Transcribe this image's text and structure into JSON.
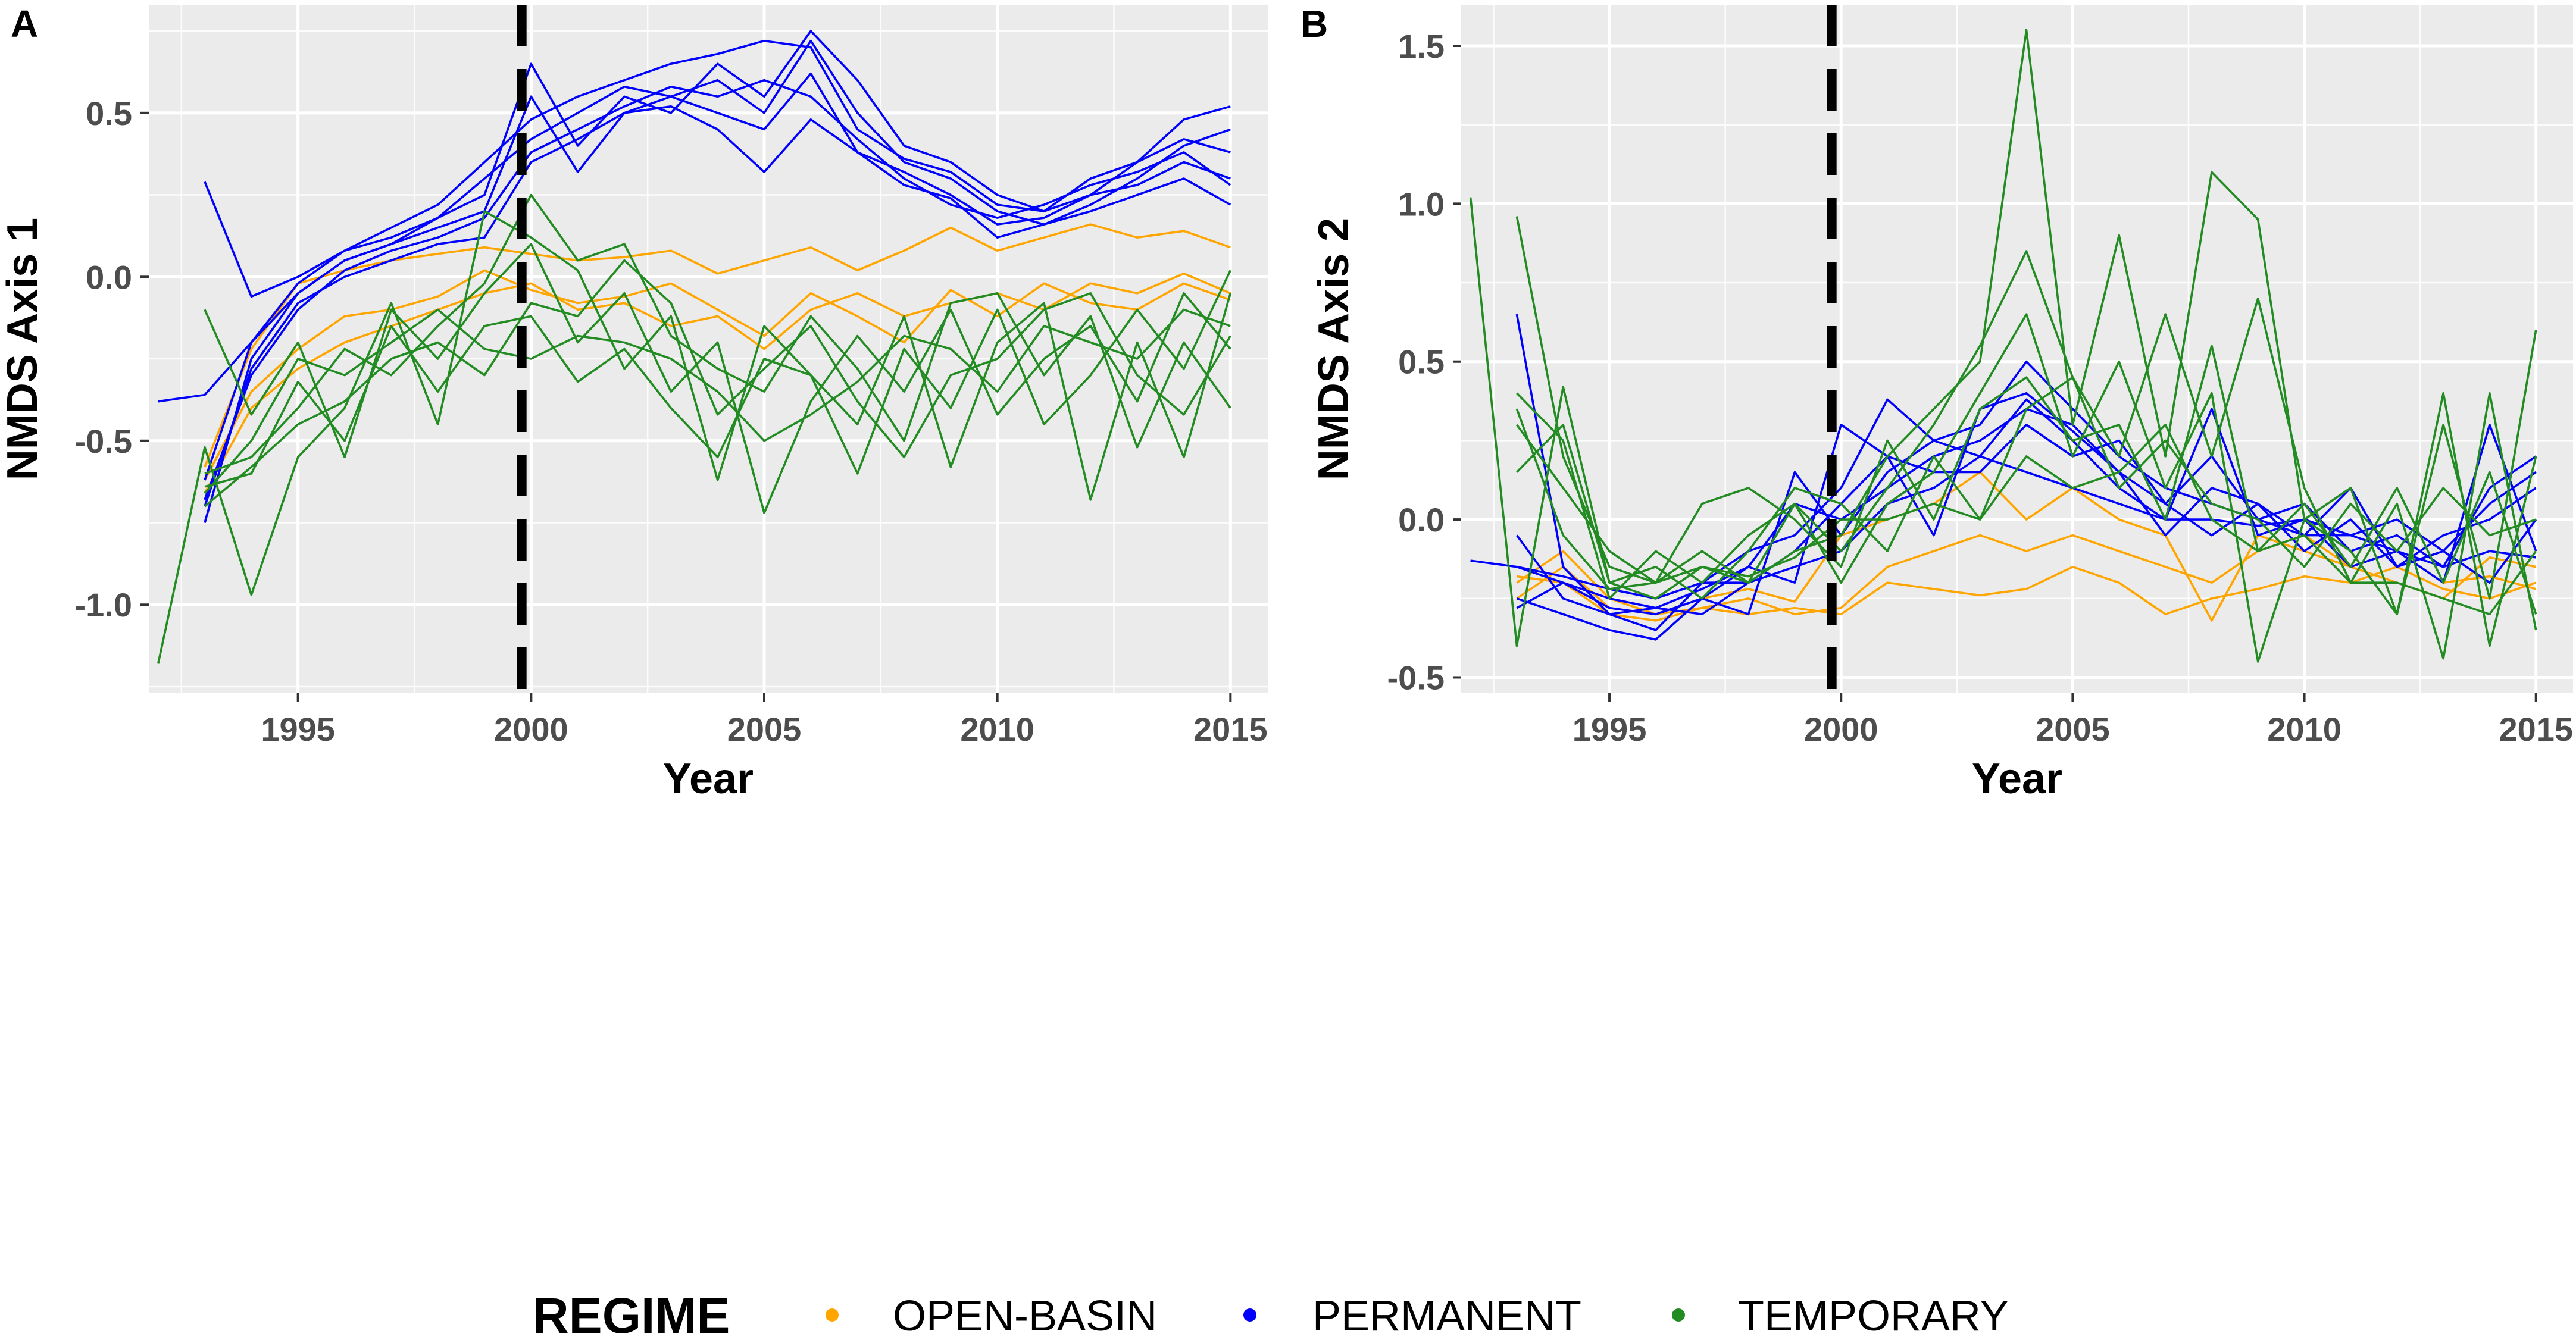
{
  "legend": {
    "title": "REGIME",
    "entries": [
      {
        "label": "OPEN-BASIN",
        "color": "#FFA500"
      },
      {
        "label": "PERMANENT",
        "color": "#0000FF"
      },
      {
        "label": "TEMPORARY",
        "color": "#228B22"
      }
    ]
  },
  "chart_data": [
    {
      "type": "line",
      "panel": "A",
      "xlabel": "Year",
      "ylabel": "NMDS Axis 1",
      "xlim": [
        1991.8,
        2015.8
      ],
      "ylim": [
        -1.27,
        0.83
      ],
      "xticks": [
        1995,
        2000,
        2005,
        2010,
        2015
      ],
      "xtick_labels": [
        "1995",
        "2000",
        "2005",
        "2010",
        "2015"
      ],
      "yticks": [
        -1.0,
        -0.5,
        0.0,
        0.5
      ],
      "ytick_labels": [
        "-1.0",
        "-0.5",
        "0.0",
        "0.5"
      ],
      "vline": 1999.8,
      "x": [
        1992,
        1993,
        1994,
        1995,
        1996,
        1997,
        1998,
        1999,
        2000,
        2001,
        2002,
        2003,
        2004,
        2005,
        2006,
        2007,
        2008,
        2009,
        2010,
        2011,
        2012,
        2013,
        2014,
        2015
      ],
      "series": [
        {
          "name": "OPEN-BASIN",
          "color": "#FFA500",
          "values": [
            null,
            -0.58,
            -0.22,
            -0.02,
            0.02,
            0.05,
            0.07,
            0.09,
            0.07,
            0.05,
            0.06,
            0.08,
            0.01,
            0.05,
            0.09,
            0.02,
            0.08,
            0.15,
            0.08,
            0.12,
            0.16,
            0.12,
            0.14,
            0.09
          ]
        },
        {
          "name": "OPEN-BASIN",
          "color": "#FFA500",
          "values": [
            null,
            -0.62,
            -0.35,
            -0.22,
            -0.12,
            -0.1,
            -0.06,
            0.02,
            -0.04,
            -0.08,
            -0.06,
            -0.02,
            -0.1,
            -0.18,
            -0.05,
            -0.12,
            -0.2,
            -0.04,
            -0.12,
            -0.02,
            -0.08,
            -0.1,
            -0.02,
            -0.07
          ]
        },
        {
          "name": "OPEN-BASIN",
          "color": "#FFA500",
          "values": [
            null,
            -0.66,
            -0.4,
            -0.28,
            -0.2,
            -0.15,
            -0.1,
            -0.05,
            -0.02,
            -0.1,
            -0.08,
            -0.15,
            -0.12,
            -0.22,
            -0.1,
            -0.05,
            -0.12,
            -0.08,
            -0.05,
            -0.1,
            -0.02,
            -0.05,
            0.01,
            -0.05
          ]
        },
        {
          "name": "PERMANENT",
          "color": "#0000FF",
          "values": [
            -0.38,
            -0.36,
            -0.2,
            -0.05,
            0.05,
            0.1,
            0.15,
            0.2,
            0.55,
            0.32,
            0.5,
            0.55,
            0.6,
            0.5,
            0.72,
            0.5,
            0.35,
            0.3,
            0.2,
            0.16,
            0.22,
            0.3,
            0.4,
            0.45
          ]
        },
        {
          "name": "PERMANENT",
          "color": "#0000FF",
          "values": [
            null,
            0.29,
            -0.06,
            0.0,
            0.08,
            0.12,
            0.18,
            0.25,
            0.65,
            0.4,
            0.55,
            0.5,
            0.65,
            0.55,
            0.75,
            0.6,
            0.4,
            0.35,
            0.25,
            0.2,
            0.25,
            0.35,
            0.48,
            0.52
          ]
        },
        {
          "name": "PERMANENT",
          "color": "#0000FF",
          "values": [
            null,
            -0.75,
            -0.25,
            -0.05,
            0.05,
            0.1,
            0.18,
            0.3,
            0.42,
            0.5,
            0.58,
            0.55,
            0.5,
            0.45,
            0.62,
            0.38,
            0.32,
            0.25,
            0.16,
            0.18,
            0.25,
            0.28,
            0.35,
            0.3
          ]
        },
        {
          "name": "PERMANENT",
          "color": "#0000FF",
          "values": [
            null,
            -0.68,
            -0.3,
            -0.1,
            0.02,
            0.08,
            0.12,
            0.18,
            0.38,
            0.45,
            0.52,
            0.58,
            0.55,
            0.6,
            0.55,
            0.42,
            0.3,
            0.22,
            0.18,
            0.22,
            0.28,
            0.32,
            0.38,
            0.28
          ]
        },
        {
          "name": "PERMANENT",
          "color": "#0000FF",
          "values": [
            null,
            -0.62,
            -0.2,
            -0.02,
            0.08,
            0.15,
            0.22,
            0.35,
            0.48,
            0.55,
            0.6,
            0.65,
            0.68,
            0.72,
            0.7,
            0.45,
            0.36,
            0.32,
            0.22,
            0.2,
            0.3,
            0.35,
            0.42,
            0.38
          ]
        },
        {
          "name": "PERMANENT",
          "color": "#0000FF",
          "values": [
            null,
            -0.7,
            -0.28,
            -0.08,
            0.0,
            0.05,
            0.1,
            0.12,
            0.35,
            0.42,
            0.5,
            0.52,
            0.45,
            0.32,
            0.48,
            0.38,
            0.28,
            0.24,
            0.12,
            0.16,
            0.2,
            0.25,
            0.3,
            0.22
          ]
        },
        {
          "name": "TEMPORARY",
          "color": "#228B22",
          "values": [
            -1.18,
            -0.52,
            -0.97,
            -0.55,
            -0.4,
            -0.08,
            -0.45,
            0.2,
            0.12,
            0.02,
            -0.28,
            -0.12,
            -0.62,
            -0.15,
            -0.3,
            -0.45,
            -0.12,
            -0.58,
            -0.2,
            -0.08,
            -0.68,
            -0.2,
            -0.55,
            -0.05
          ]
        },
        {
          "name": "TEMPORARY",
          "color": "#228B22",
          "values": [
            null,
            -0.1,
            -0.42,
            -0.2,
            -0.55,
            -0.1,
            -0.25,
            -0.05,
            0.1,
            -0.2,
            -0.05,
            -0.35,
            -0.2,
            -0.72,
            -0.38,
            -0.18,
            -0.35,
            -0.1,
            -0.42,
            -0.25,
            -0.15,
            -0.38,
            -0.05,
            -0.22
          ]
        },
        {
          "name": "TEMPORARY",
          "color": "#228B22",
          "values": [
            null,
            -0.6,
            -0.55,
            -0.4,
            -0.22,
            -0.3,
            -0.15,
            -0.02,
            0.25,
            0.05,
            0.1,
            -0.18,
            -0.28,
            -0.35,
            -0.12,
            -0.28,
            -0.5,
            -0.08,
            -0.05,
            -0.3,
            -0.12,
            -0.52,
            -0.2,
            -0.4
          ]
        },
        {
          "name": "TEMPORARY",
          "color": "#228B22",
          "values": [
            null,
            -0.64,
            -0.6,
            -0.32,
            -0.5,
            -0.15,
            -0.35,
            -0.15,
            -0.12,
            -0.32,
            -0.22,
            -0.4,
            -0.55,
            -0.25,
            -0.3,
            -0.6,
            -0.22,
            -0.4,
            -0.1,
            -0.45,
            -0.3,
            -0.1,
            -0.28,
            0.02
          ]
        },
        {
          "name": "TEMPORARY",
          "color": "#228B22",
          "values": [
            null,
            -0.66,
            -0.5,
            -0.25,
            -0.3,
            -0.2,
            -0.1,
            -0.22,
            -0.25,
            -0.18,
            -0.2,
            -0.25,
            -0.35,
            -0.5,
            -0.42,
            -0.32,
            -0.18,
            -0.22,
            -0.35,
            -0.15,
            -0.2,
            -0.25,
            -0.1,
            -0.15
          ]
        },
        {
          "name": "TEMPORARY",
          "color": "#228B22",
          "values": [
            null,
            -0.7,
            -0.58,
            -0.45,
            -0.38,
            -0.25,
            -0.2,
            -0.3,
            -0.08,
            -0.12,
            0.05,
            -0.08,
            -0.42,
            -0.28,
            -0.15,
            -0.38,
            -0.55,
            -0.3,
            -0.25,
            -0.1,
            -0.05,
            -0.3,
            -0.42,
            -0.18
          ]
        }
      ]
    },
    {
      "type": "line",
      "panel": "B",
      "xlabel": "Year",
      "ylabel": "NMDS Axis 2",
      "xlim": [
        1991.8,
        2015.8
      ],
      "ylim": [
        -0.55,
        1.63
      ],
      "xticks": [
        1995,
        2000,
        2005,
        2010,
        2015
      ],
      "xtick_labels": [
        "1995",
        "2000",
        "2005",
        "2010",
        "2015"
      ],
      "yticks": [
        -0.5,
        0.0,
        0.5,
        1.0,
        1.5
      ],
      "ytick_labels": [
        "-0.5",
        "0.0",
        "0.5",
        "1.0",
        "1.5"
      ],
      "vline": 1999.8,
      "x": [
        1992,
        1993,
        1994,
        1995,
        1996,
        1997,
        1998,
        1999,
        2000,
        2001,
        2002,
        2003,
        2004,
        2005,
        2006,
        2007,
        2008,
        2009,
        2010,
        2011,
        2012,
        2013,
        2014,
        2015
      ],
      "series": [
        {
          "name": "OPEN-BASIN",
          "color": "#FFA500",
          "values": [
            null,
            -0.2,
            -0.1,
            -0.25,
            -0.3,
            -0.28,
            -0.3,
            -0.28,
            -0.3,
            -0.2,
            -0.22,
            -0.24,
            -0.22,
            -0.15,
            -0.2,
            -0.3,
            -0.25,
            -0.22,
            -0.18,
            -0.2,
            -0.15,
            -0.22,
            -0.25,
            -0.2
          ]
        },
        {
          "name": "OPEN-BASIN",
          "color": "#FFA500",
          "values": [
            null,
            -0.25,
            -0.15,
            -0.28,
            -0.3,
            -0.25,
            -0.22,
            -0.26,
            -0.05,
            0.0,
            0.05,
            0.15,
            0.0,
            0.1,
            0.0,
            -0.05,
            -0.32,
            -0.05,
            -0.1,
            -0.15,
            -0.2,
            -0.25,
            -0.12,
            -0.15
          ]
        },
        {
          "name": "OPEN-BASIN",
          "color": "#FFA500",
          "values": [
            null,
            -0.18,
            -0.2,
            -0.3,
            -0.32,
            -0.28,
            -0.25,
            -0.3,
            -0.28,
            -0.15,
            -0.1,
            -0.05,
            -0.1,
            -0.05,
            -0.1,
            -0.15,
            -0.2,
            -0.1,
            -0.05,
            -0.15,
            -0.1,
            -0.2,
            -0.18,
            -0.22
          ]
        },
        {
          "name": "PERMANENT",
          "color": "#0000FF",
          "values": [
            -0.13,
            -0.15,
            -0.18,
            -0.22,
            -0.25,
            -0.2,
            -0.1,
            -0.05,
            0.1,
            0.38,
            0.25,
            0.3,
            0.5,
            0.35,
            0.2,
            0.1,
            0.05,
            0.0,
            0.05,
            -0.1,
            -0.05,
            -0.15,
            0.1,
            0.2
          ]
        },
        {
          "name": "PERMANENT",
          "color": "#0000FF",
          "values": [
            null,
            0.65,
            -0.15,
            -0.3,
            -0.28,
            -0.22,
            -0.15,
            -0.2,
            0.3,
            0.2,
            -0.05,
            0.35,
            0.4,
            0.28,
            0.15,
            0.05,
            0.2,
            0.0,
            -0.05,
            -0.05,
            0.0,
            -0.1,
            0.05,
            0.15
          ]
        },
        {
          "name": "PERMANENT",
          "color": "#0000FF",
          "values": [
            null,
            -0.25,
            -0.3,
            -0.35,
            -0.38,
            -0.25,
            -0.15,
            0.05,
            0.0,
            0.1,
            0.2,
            0.25,
            0.35,
            0.3,
            0.15,
            -0.05,
            0.1,
            0.05,
            -0.1,
            0.0,
            -0.15,
            -0.05,
            0.0,
            0.1
          ]
        },
        {
          "name": "PERMANENT",
          "color": "#0000FF",
          "values": [
            null,
            -0.15,
            -0.2,
            -0.28,
            -0.3,
            -0.25,
            -0.3,
            0.15,
            -0.05,
            0.15,
            0.25,
            0.2,
            0.38,
            0.25,
            0.1,
            0.0,
            0.35,
            -0.05,
            0.0,
            -0.15,
            -0.1,
            -0.2,
            0.3,
            -0.1
          ]
        },
        {
          "name": "PERMANENT",
          "color": "#0000FF",
          "values": [
            null,
            -0.05,
            -0.25,
            -0.3,
            -0.35,
            -0.2,
            -0.2,
            -0.1,
            0.05,
            0.2,
            0.15,
            0.15,
            0.3,
            0.2,
            0.25,
            0.05,
            -0.05,
            0.05,
            -0.05,
            0.1,
            -0.15,
            -0.1,
            -0.2,
            0.0
          ]
        },
        {
          "name": "PERMANENT",
          "color": "#0000FF",
          "values": [
            null,
            -0.28,
            -0.2,
            -0.25,
            -0.28,
            -0.3,
            -0.2,
            -0.15,
            -0.1,
            0.05,
            0.1,
            0.2,
            0.15,
            0.1,
            0.05,
            0.0,
            0.0,
            -0.02,
            0.0,
            -0.05,
            -0.1,
            -0.15,
            -0.1,
            -0.12
          ]
        },
        {
          "name": "TEMPORARY",
          "color": "#228B22",
          "values": [
            1.02,
            -0.4,
            0.42,
            -0.2,
            -0.25,
            -0.15,
            -0.2,
            -0.1,
            -0.05,
            0.2,
            0.35,
            0.5,
            1.55,
            0.3,
            0.9,
            0.2,
            1.1,
            0.95,
            0.0,
            -0.1,
            -0.3,
            0.3,
            -0.25,
            0.6
          ]
        },
        {
          "name": "TEMPORARY",
          "color": "#228B22",
          "values": [
            null,
            0.96,
            0.2,
            -0.15,
            -0.2,
            -0.1,
            -0.2,
            0.05,
            -0.1,
            0.1,
            0.3,
            0.55,
            0.85,
            0.45,
            0.2,
            0.65,
            0.2,
            0.7,
            0.1,
            -0.2,
            0.05,
            -0.44,
            0.4,
            -0.35
          ]
        },
        {
          "name": "TEMPORARY",
          "color": "#228B22",
          "values": [
            null,
            0.4,
            0.25,
            -0.25,
            -0.1,
            -0.2,
            -0.05,
            0.05,
            -0.2,
            0.05,
            0.15,
            0.4,
            0.65,
            0.2,
            0.5,
            0.1,
            0.4,
            -0.45,
            0.0,
            0.1,
            -0.3,
            0.4,
            -0.4,
            0.2
          ]
        },
        {
          "name": "TEMPORARY",
          "color": "#228B22",
          "values": [
            null,
            0.3,
            0.1,
            -0.1,
            -0.2,
            0.05,
            0.1,
            0.0,
            -0.15,
            0.25,
            0.0,
            0.35,
            0.45,
            0.25,
            0.3,
            0.0,
            0.55,
            -0.1,
            0.05,
            -0.15,
            0.1,
            -0.2,
            0.15,
            -0.3
          ]
        },
        {
          "name": "TEMPORARY",
          "color": "#228B22",
          "values": [
            null,
            0.15,
            0.3,
            -0.2,
            -0.15,
            -0.25,
            -0.1,
            0.1,
            0.05,
            -0.1,
            0.2,
            0.0,
            0.35,
            0.45,
            0.1,
            0.25,
            0.05,
            0.0,
            -0.15,
            0.05,
            -0.1,
            0.1,
            -0.05,
            0.0
          ]
        },
        {
          "name": "TEMPORARY",
          "color": "#228B22",
          "values": [
            null,
            0.35,
            -0.05,
            -0.22,
            -0.2,
            -0.15,
            -0.18,
            -0.12,
            0.0,
            0.0,
            0.05,
            0.0,
            0.2,
            0.1,
            0.15,
            0.3,
            0.0,
            -0.1,
            -0.05,
            -0.2,
            -0.2,
            -0.25,
            -0.3,
            -0.1
          ]
        }
      ]
    }
  ]
}
